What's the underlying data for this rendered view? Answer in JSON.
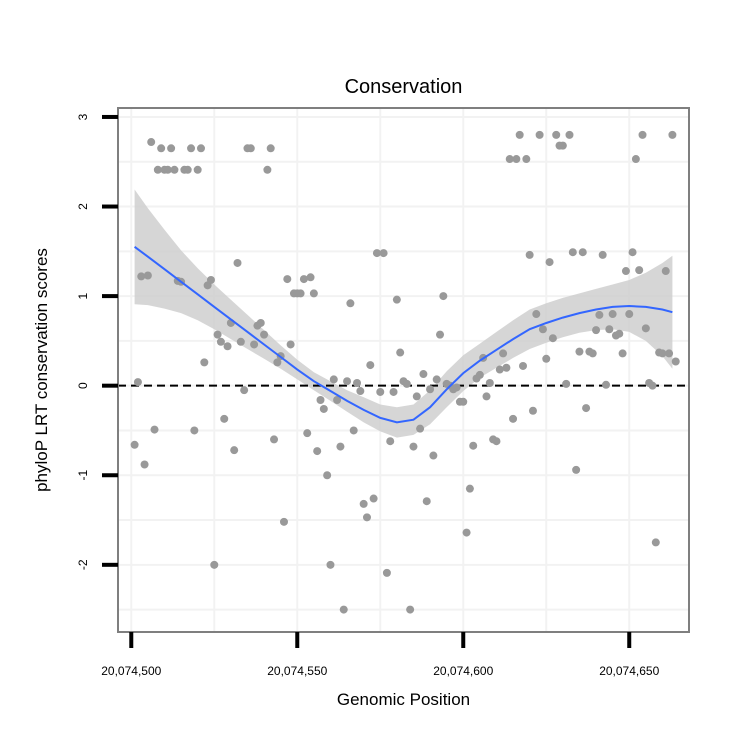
{
  "chart_data": {
    "type": "scatter",
    "title": "Conservation",
    "xlabel": "Genomic Position",
    "ylabel": "phyloP LRT conservation scores",
    "xlim": [
      20074496,
      20074668
    ],
    "ylim": [
      -2.75,
      3.1
    ],
    "x_ticks": [
      {
        "value": 20074500,
        "label": "20,074,500"
      },
      {
        "value": 20074550,
        "label": "20,074,550"
      },
      {
        "value": 20074600,
        "label": "20,074,600"
      },
      {
        "value": 20074650,
        "label": "20,074,650"
      }
    ],
    "y_ticks": [
      {
        "value": 3,
        "label": "3"
      },
      {
        "value": 2,
        "label": "2"
      },
      {
        "value": 1,
        "label": "1"
      },
      {
        "value": 0,
        "label": "0"
      },
      {
        "value": -1,
        "label": "-1"
      },
      {
        "value": -2,
        "label": "-2"
      }
    ],
    "reference_line": {
      "y": 0,
      "style": "dashed"
    },
    "grid": true,
    "colors": {
      "points": "#999999",
      "smooth": "#3366ff",
      "ribbon": "#cccccc",
      "reference": "#000000",
      "panel_border": "#7f7f7f",
      "grid": "#f2f2f2"
    },
    "points": [
      {
        "x": 20074501,
        "y": -0.66
      },
      {
        "x": 20074502,
        "y": 0.04
      },
      {
        "x": 20074503,
        "y": 1.22
      },
      {
        "x": 20074504,
        "y": -0.88
      },
      {
        "x": 20074505,
        "y": 1.23
      },
      {
        "x": 20074506,
        "y": 2.72
      },
      {
        "x": 20074507,
        "y": -0.49
      },
      {
        "x": 20074508,
        "y": 2.41
      },
      {
        "x": 20074509,
        "y": 2.65
      },
      {
        "x": 20074510,
        "y": 2.41
      },
      {
        "x": 20074511,
        "y": 2.41
      },
      {
        "x": 20074512,
        "y": 2.65
      },
      {
        "x": 20074513,
        "y": 2.41
      },
      {
        "x": 20074514,
        "y": 1.17
      },
      {
        "x": 20074515,
        "y": 1.16
      },
      {
        "x": 20074516,
        "y": 2.41
      },
      {
        "x": 20074517,
        "y": 2.41
      },
      {
        "x": 20074518,
        "y": 2.65
      },
      {
        "x": 20074519,
        "y": -0.5
      },
      {
        "x": 20074520,
        "y": 2.41
      },
      {
        "x": 20074521,
        "y": 2.65
      },
      {
        "x": 20074522,
        "y": 0.26
      },
      {
        "x": 20074523,
        "y": 1.12
      },
      {
        "x": 20074524,
        "y": 1.18
      },
      {
        "x": 20074525,
        "y": -2.0
      },
      {
        "x": 20074526,
        "y": 0.57
      },
      {
        "x": 20074527,
        "y": 0.49
      },
      {
        "x": 20074528,
        "y": -0.37
      },
      {
        "x": 20074529,
        "y": 0.44
      },
      {
        "x": 20074530,
        "y": 0.7
      },
      {
        "x": 20074531,
        "y": -0.72
      },
      {
        "x": 20074532,
        "y": 1.37
      },
      {
        "x": 20074533,
        "y": 0.49
      },
      {
        "x": 20074534,
        "y": -0.05
      },
      {
        "x": 20074535,
        "y": 2.65
      },
      {
        "x": 20074536,
        "y": 2.65
      },
      {
        "x": 20074537,
        "y": 0.46
      },
      {
        "x": 20074538,
        "y": 0.67
      },
      {
        "x": 20074539,
        "y": 0.7
      },
      {
        "x": 20074540,
        "y": 0.57
      },
      {
        "x": 20074541,
        "y": 2.41
      },
      {
        "x": 20074542,
        "y": 2.65
      },
      {
        "x": 20074543,
        "y": -0.6
      },
      {
        "x": 20074544,
        "y": 0.26
      },
      {
        "x": 20074545,
        "y": 0.33
      },
      {
        "x": 20074546,
        "y": -1.52
      },
      {
        "x": 20074547,
        "y": 1.19
      },
      {
        "x": 20074548,
        "y": 0.46
      },
      {
        "x": 20074549,
        "y": 1.03
      },
      {
        "x": 20074550,
        "y": 1.03
      },
      {
        "x": 20074551,
        "y": 1.03
      },
      {
        "x": 20074552,
        "y": 1.19
      },
      {
        "x": 20074553,
        "y": -0.53
      },
      {
        "x": 20074554,
        "y": 1.21
      },
      {
        "x": 20074555,
        "y": 1.03
      },
      {
        "x": 20074556,
        "y": -0.73
      },
      {
        "x": 20074557,
        "y": -0.16
      },
      {
        "x": 20074558,
        "y": -0.26
      },
      {
        "x": 20074559,
        "y": -1.0
      },
      {
        "x": 20074560,
        "y": -2.0
      },
      {
        "x": 20074561,
        "y": 0.07
      },
      {
        "x": 20074562,
        "y": -0.16
      },
      {
        "x": 20074563,
        "y": -0.68
      },
      {
        "x": 20074564,
        "y": -2.5
      },
      {
        "x": 20074565,
        "y": 0.05
      },
      {
        "x": 20074566,
        "y": 0.92
      },
      {
        "x": 20074567,
        "y": -0.5
      },
      {
        "x": 20074568,
        "y": 0.03
      },
      {
        "x": 20074569,
        "y": -0.06
      },
      {
        "x": 20074570,
        "y": -1.32
      },
      {
        "x": 20074571,
        "y": -1.47
      },
      {
        "x": 20074572,
        "y": 0.23
      },
      {
        "x": 20074573,
        "y": -1.26
      },
      {
        "x": 20074574,
        "y": 1.48
      },
      {
        "x": 20074575,
        "y": -0.07
      },
      {
        "x": 20074576,
        "y": 1.48
      },
      {
        "x": 20074577,
        "y": -2.09
      },
      {
        "x": 20074578,
        "y": -0.62
      },
      {
        "x": 20074579,
        "y": -0.07
      },
      {
        "x": 20074580,
        "y": 0.96
      },
      {
        "x": 20074581,
        "y": 0.37
      },
      {
        "x": 20074582,
        "y": 0.05
      },
      {
        "x": 20074583,
        "y": 0.02
      },
      {
        "x": 20074584,
        "y": -2.5
      },
      {
        "x": 20074585,
        "y": -0.68
      },
      {
        "x": 20074586,
        "y": -0.12
      },
      {
        "x": 20074587,
        "y": -0.48
      },
      {
        "x": 20074588,
        "y": 0.13
      },
      {
        "x": 20074589,
        "y": -1.29
      },
      {
        "x": 20074590,
        "y": -0.04
      },
      {
        "x": 20074591,
        "y": -0.78
      },
      {
        "x": 20074592,
        "y": 0.07
      },
      {
        "x": 20074593,
        "y": 0.57
      },
      {
        "x": 20074594,
        "y": 1.0
      },
      {
        "x": 20074595,
        "y": 0.02
      },
      {
        "x": 20074596,
        "y": 0.0
      },
      {
        "x": 20074597,
        "y": -0.04
      },
      {
        "x": 20074598,
        "y": -0.02
      },
      {
        "x": 20074599,
        "y": -0.18
      },
      {
        "x": 20074600,
        "y": -0.18
      },
      {
        "x": 20074601,
        "y": -1.64
      },
      {
        "x": 20074602,
        "y": -1.15
      },
      {
        "x": 20074603,
        "y": -0.67
      },
      {
        "x": 20074604,
        "y": 0.08
      },
      {
        "x": 20074605,
        "y": 0.12
      },
      {
        "x": 20074606,
        "y": 0.31
      },
      {
        "x": 20074607,
        "y": -0.12
      },
      {
        "x": 20074608,
        "y": 0.03
      },
      {
        "x": 20074609,
        "y": -0.6
      },
      {
        "x": 20074610,
        "y": -0.62
      },
      {
        "x": 20074611,
        "y": 0.18
      },
      {
        "x": 20074612,
        "y": 0.36
      },
      {
        "x": 20074613,
        "y": 0.2
      },
      {
        "x": 20074614,
        "y": 2.53
      },
      {
        "x": 20074615,
        "y": -0.37
      },
      {
        "x": 20074616,
        "y": 2.53
      },
      {
        "x": 20074617,
        "y": 2.8
      },
      {
        "x": 20074618,
        "y": 0.22
      },
      {
        "x": 20074619,
        "y": 2.53
      },
      {
        "x": 20074620,
        "y": 1.46
      },
      {
        "x": 20074621,
        "y": -0.28
      },
      {
        "x": 20074622,
        "y": 0.8
      },
      {
        "x": 20074623,
        "y": 2.8
      },
      {
        "x": 20074624,
        "y": 0.63
      },
      {
        "x": 20074625,
        "y": 0.3
      },
      {
        "x": 20074626,
        "y": 1.38
      },
      {
        "x": 20074627,
        "y": 0.53
      },
      {
        "x": 20074628,
        "y": 2.8
      },
      {
        "x": 20074629,
        "y": 2.68
      },
      {
        "x": 20074630,
        "y": 2.68
      },
      {
        "x": 20074631,
        "y": 0.02
      },
      {
        "x": 20074632,
        "y": 2.8
      },
      {
        "x": 20074633,
        "y": 1.49
      },
      {
        "x": 20074634,
        "y": -0.94
      },
      {
        "x": 20074635,
        "y": 0.38
      },
      {
        "x": 20074636,
        "y": 1.49
      },
      {
        "x": 20074637,
        "y": -0.25
      },
      {
        "x": 20074638,
        "y": 0.38
      },
      {
        "x": 20074639,
        "y": 0.36
      },
      {
        "x": 20074640,
        "y": 0.62
      },
      {
        "x": 20074641,
        "y": 0.79
      },
      {
        "x": 20074642,
        "y": 1.46
      },
      {
        "x": 20074643,
        "y": 0.01
      },
      {
        "x": 20074644,
        "y": 0.63
      },
      {
        "x": 20074645,
        "y": 0.8
      },
      {
        "x": 20074646,
        "y": 0.56
      },
      {
        "x": 20074647,
        "y": 0.58
      },
      {
        "x": 20074648,
        "y": 0.36
      },
      {
        "x": 20074649,
        "y": 1.28
      },
      {
        "x": 20074650,
        "y": 0.8
      },
      {
        "x": 20074651,
        "y": 1.49
      },
      {
        "x": 20074652,
        "y": 2.53
      },
      {
        "x": 20074653,
        "y": 1.29
      },
      {
        "x": 20074654,
        "y": 2.8
      },
      {
        "x": 20074655,
        "y": 0.64
      },
      {
        "x": 20074656,
        "y": 0.03
      },
      {
        "x": 20074657,
        "y": 0.0
      },
      {
        "x": 20074658,
        "y": -1.75
      },
      {
        "x": 20074659,
        "y": 0.37
      },
      {
        "x": 20074660,
        "y": 0.36
      },
      {
        "x": 20074661,
        "y": 1.28
      },
      {
        "x": 20074662,
        "y": 0.36
      },
      {
        "x": 20074663,
        "y": 2.8
      },
      {
        "x": 20074664,
        "y": 0.27
      }
    ],
    "smooth": {
      "x": [
        20074501,
        20074505,
        20074510,
        20074515,
        20074520,
        20074525,
        20074530,
        20074535,
        20074540,
        20074545,
        20074550,
        20074555,
        20074560,
        20074565,
        20074570,
        20074575,
        20074580,
        20074585,
        20074590,
        20074595,
        20074600,
        20074605,
        20074610,
        20074615,
        20074620,
        20074625,
        20074630,
        20074635,
        20074640,
        20074645,
        20074650,
        20074655,
        20074660,
        20074663
      ],
      "y": [
        1.55,
        1.44,
        1.3,
        1.16,
        1.02,
        0.88,
        0.74,
        0.6,
        0.46,
        0.32,
        0.18,
        0.05,
        -0.06,
        -0.17,
        -0.27,
        -0.36,
        -0.41,
        -0.38,
        -0.24,
        -0.04,
        0.14,
        0.28,
        0.4,
        0.52,
        0.63,
        0.7,
        0.76,
        0.81,
        0.85,
        0.88,
        0.89,
        0.88,
        0.85,
        0.82
      ],
      "lower": [
        0.91,
        0.9,
        0.86,
        0.81,
        0.73,
        0.63,
        0.52,
        0.41,
        0.3,
        0.19,
        0.07,
        -0.05,
        -0.17,
        -0.29,
        -0.41,
        -0.51,
        -0.58,
        -0.55,
        -0.43,
        -0.24,
        -0.06,
        0.09,
        0.2,
        0.31,
        0.41,
        0.48,
        0.54,
        0.59,
        0.62,
        0.63,
        0.6,
        0.5,
        0.33,
        0.19
      ],
      "upper": [
        2.19,
        1.98,
        1.74,
        1.51,
        1.31,
        1.13,
        0.96,
        0.79,
        0.62,
        0.45,
        0.29,
        0.15,
        0.05,
        -0.05,
        -0.13,
        -0.21,
        -0.24,
        -0.21,
        -0.05,
        0.16,
        0.34,
        0.47,
        0.6,
        0.73,
        0.85,
        0.92,
        0.98,
        1.03,
        1.08,
        1.13,
        1.18,
        1.26,
        1.37,
        1.45
      ]
    }
  }
}
